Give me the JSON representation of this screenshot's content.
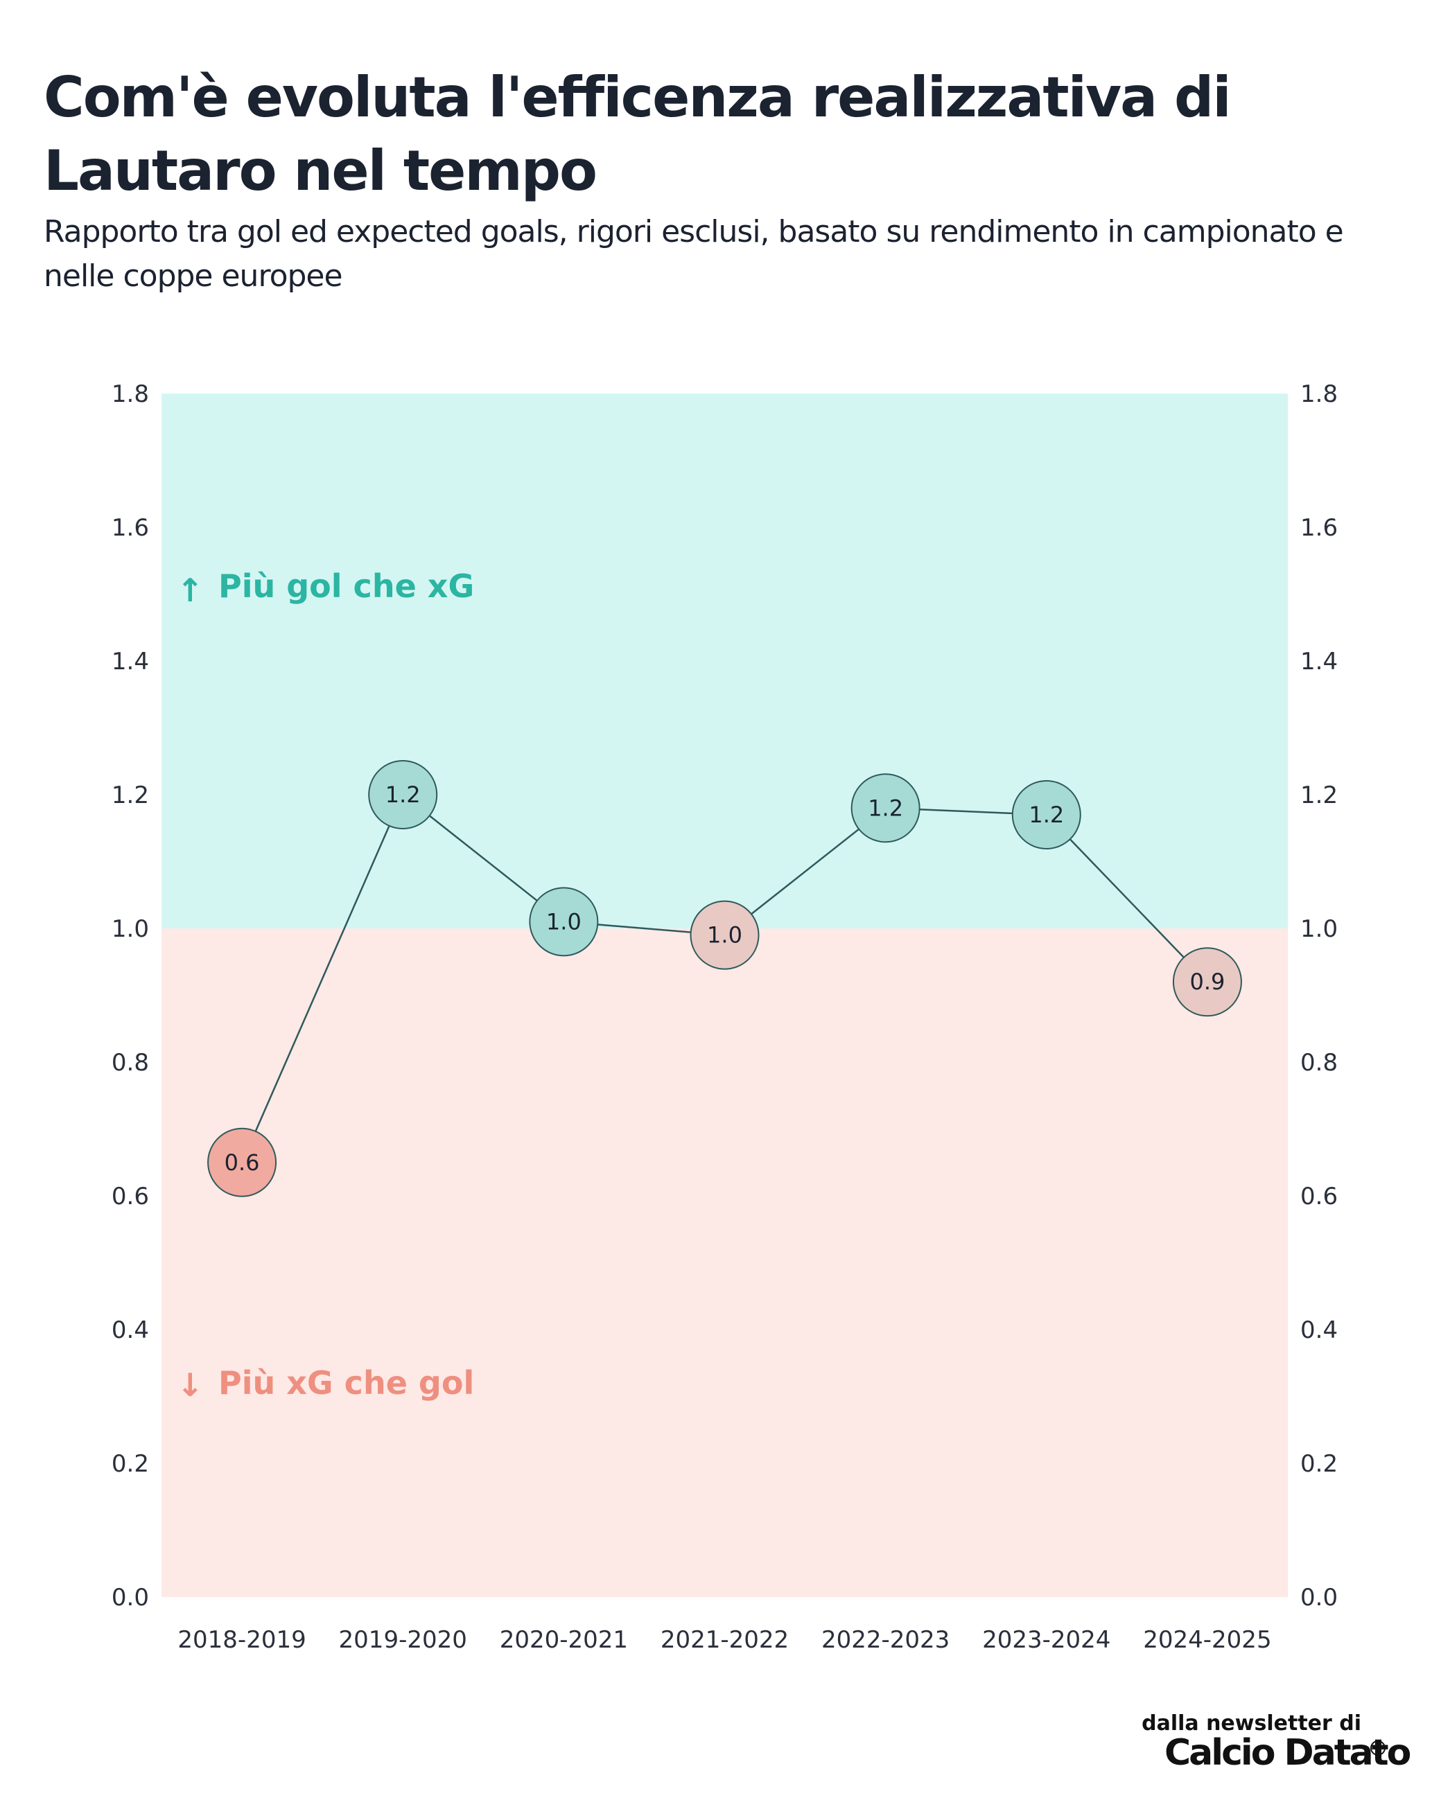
{
  "title": "Com'è evoluta l'efficenza realizzativa di Lautaro nel tempo",
  "subtitle": "Rapporto tra gol ed expected goals, rigori esclusi, basato su rendimento in campionato e nelle coppe europee",
  "annotations": {
    "above": "Più gol che xG",
    "below": "Più xG che gol",
    "above_arrow": "↑",
    "below_arrow": "↓"
  },
  "credit": {
    "line1": "dalla newsletter di",
    "logo": "Calcio Datato"
  },
  "colors": {
    "above_band": "#d4f6f3",
    "below_band": "#fde9e6",
    "above_text": "#2bb5a2",
    "below_text": "#ee8f80",
    "marker_above": "#a6dbd5",
    "marker_neutral": "#e9c9c4",
    "marker_below": "#f0aa9f",
    "line": "#2e5a5c"
  },
  "chart_data": {
    "type": "line",
    "title": "Com'è evoluta l'efficenza realizzativa di Lautaro nel tempo",
    "xlabel": "",
    "ylabel": "",
    "categories": [
      "2018-2019",
      "2019-2020",
      "2020-2021",
      "2021-2022",
      "2022-2023",
      "2023-2024",
      "2024-2025"
    ],
    "values": [
      0.65,
      1.2,
      1.01,
      0.99,
      1.18,
      1.17,
      0.92
    ],
    "data_labels": [
      "0.6",
      "1.2",
      "1.0",
      "1.0",
      "1.2",
      "1.2",
      "0.9"
    ],
    "ylim": [
      0,
      1.8
    ],
    "yticks": [
      "0.0",
      "0.2",
      "0.4",
      "0.6",
      "0.8",
      "1.0",
      "1.2",
      "1.4",
      "1.6",
      "1.8"
    ],
    "y_axis_both_sides": true,
    "reference_value": 1.0,
    "grid": false
  }
}
